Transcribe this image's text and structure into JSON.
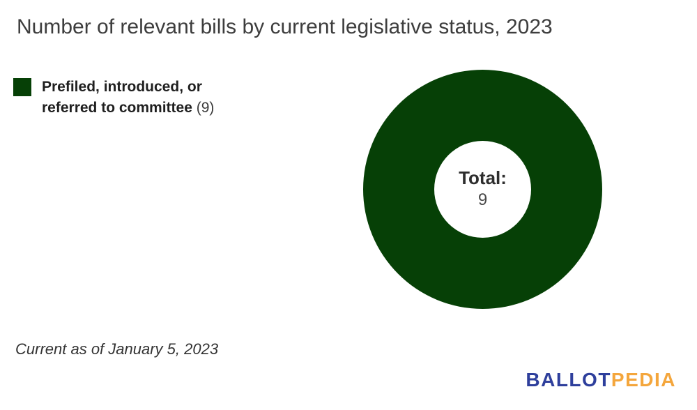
{
  "title": "Number of relevant bills by current legislative status, 2023",
  "legend": {
    "items": [
      {
        "label": "Prefiled, introduced, or referred to committee",
        "count": "(9)",
        "color": "#064006"
      }
    ]
  },
  "chart": {
    "center_label": "Total:",
    "center_value": "9"
  },
  "chart_data": {
    "type": "pie",
    "donut": true,
    "title": "Number of relevant bills by current legislative status, 2023",
    "categories": [
      "Prefiled, introduced, or referred to committee"
    ],
    "values": [
      9
    ],
    "colors": [
      "#064006"
    ],
    "total": 9,
    "center_text": "Total: 9",
    "legend_position": "top-left",
    "annotations": [
      "Current as of January 5, 2023"
    ]
  },
  "footer": {
    "note": "Current as of January 5, 2023"
  },
  "logo": {
    "part1": "BALLOT",
    "part2": "PEDIA",
    "color1": "#2e3f9c",
    "color2": "#f4a63c"
  }
}
